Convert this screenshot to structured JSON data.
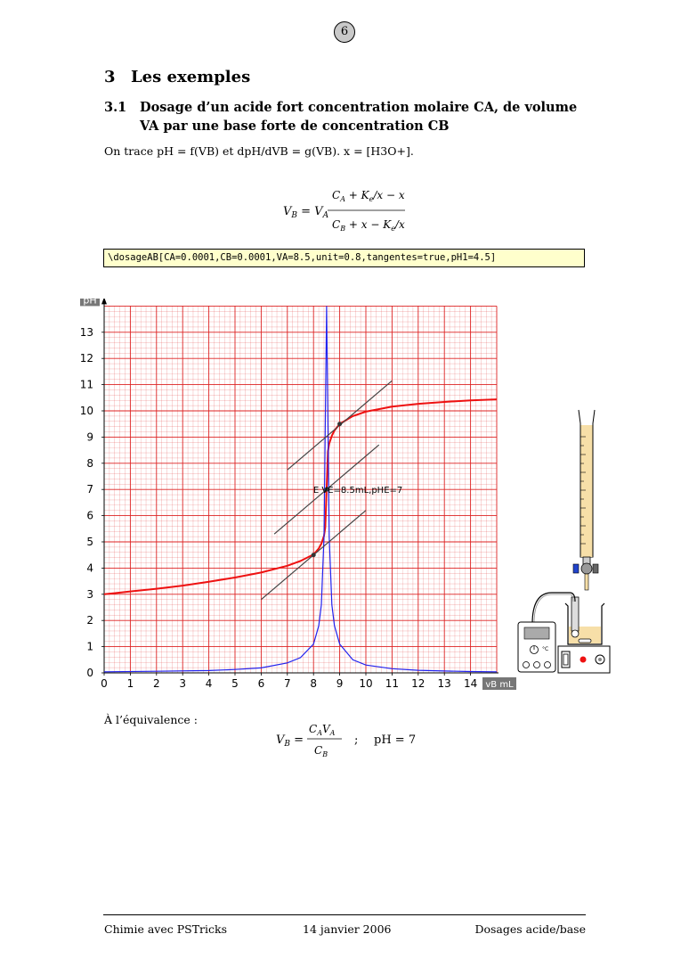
{
  "page": {
    "number": "6"
  },
  "section": {
    "number": "3",
    "title": "Les exemples"
  },
  "subsection": {
    "number": "3.1",
    "title": "Dosage d’un acide fort concentration molaire CA, de volume VA par une base forte de concentration CB"
  },
  "intro": "On trace pH = f(VB) et dpH/dVB = g(VB). x = [H3O+].",
  "formula": "VB = VA (CA + Ke/x − x) / (CB + x − Ke/x)",
  "code": "\\dosageAB[CA=0.0001,CB=0.0001,VA=8.5,unit=0.8,tangentes=true,pH1=4.5]",
  "equivalence_label": "À l’équivalence :",
  "equivalence_formula": "VB = CA VA / CB   ;   pH = 7",
  "footer": {
    "left": "Chimie avec PSTricks",
    "center": "14 janvier 2006",
    "right": "Dosages acide/base"
  },
  "colors": {
    "grid": "#dd2222",
    "ph_curve": "#ee1111",
    "derivative_curve": "#2222ee",
    "tangent": "#444444",
    "code_bg": "#ffffcc",
    "buret_liquid": "#f7dfa8"
  },
  "apparatus_icons": [
    "buret-icon",
    "ph-meter-icon",
    "beaker-icon",
    "magnetic-stirrer-icon"
  ],
  "chart_data": {
    "type": "line",
    "xlabel": "vB mL",
    "ylabel": "pH",
    "xlim": [
      0,
      15
    ],
    "ylim": [
      0,
      14
    ],
    "xticks": [
      "0",
      "1",
      "2",
      "3",
      "4",
      "5",
      "6",
      "7",
      "8",
      "9",
      "10",
      "11",
      "12",
      "13",
      "14"
    ],
    "yticks": [
      "0",
      "1",
      "2",
      "3",
      "4",
      "5",
      "6",
      "7",
      "8",
      "9",
      "10",
      "11",
      "12",
      "13"
    ],
    "grid": true,
    "annotation": "E  VE=8.5mL,pHE=7",
    "series": [
      {
        "type": "ph_curve",
        "x": [
          0,
          1,
          2,
          3,
          4,
          5,
          6,
          7,
          7.5,
          8,
          8.2,
          8.3,
          8.4,
          8.45,
          8.5,
          8.55,
          8.6,
          8.7,
          8.8,
          9,
          9.5,
          10,
          11,
          12,
          13,
          14,
          15
        ],
        "y": [
          3.0,
          3.11,
          3.21,
          3.33,
          3.48,
          3.64,
          3.83,
          4.09,
          4.27,
          4.52,
          4.75,
          4.93,
          5.23,
          5.55,
          7.0,
          8.46,
          8.75,
          9.05,
          9.25,
          9.5,
          9.8,
          9.97,
          10.16,
          10.27,
          10.34,
          10.4,
          10.44
        ]
      },
      {
        "type": "derivative_curve",
        "x": [
          0,
          2,
          4,
          5,
          6,
          7,
          7.5,
          8,
          8.2,
          8.3,
          8.4,
          8.45,
          8.5,
          8.55,
          8.6,
          8.7,
          8.8,
          9,
          9.5,
          10,
          11,
          12,
          13,
          14,
          15
        ],
        "y": [
          0.04,
          0.06,
          0.09,
          0.13,
          0.19,
          0.38,
          0.58,
          1.1,
          1.8,
          2.6,
          5.2,
          9.5,
          14,
          9.5,
          5.2,
          2.6,
          1.8,
          1.1,
          0.5,
          0.3,
          0.16,
          0.1,
          0.07,
          0.05,
          0.04
        ]
      },
      {
        "type": "tangent_low",
        "x": [
          6,
          10
        ],
        "y": [
          2.8,
          6.2
        ]
      },
      {
        "type": "tangent_high",
        "x": [
          7,
          11
        ],
        "y": [
          7.75,
          11.15
        ]
      },
      {
        "type": "tangent_mid",
        "x": [
          6.5,
          10.5
        ],
        "y": [
          5.3,
          8.7
        ]
      }
    ],
    "points": [
      {
        "name": "tangent-point-low",
        "x": 8,
        "y": 4.5
      },
      {
        "name": "tangent-point-high",
        "x": 9,
        "y": 9.5
      },
      {
        "name": "equivalence-point",
        "x": 8.5,
        "y": 7
      }
    ]
  }
}
